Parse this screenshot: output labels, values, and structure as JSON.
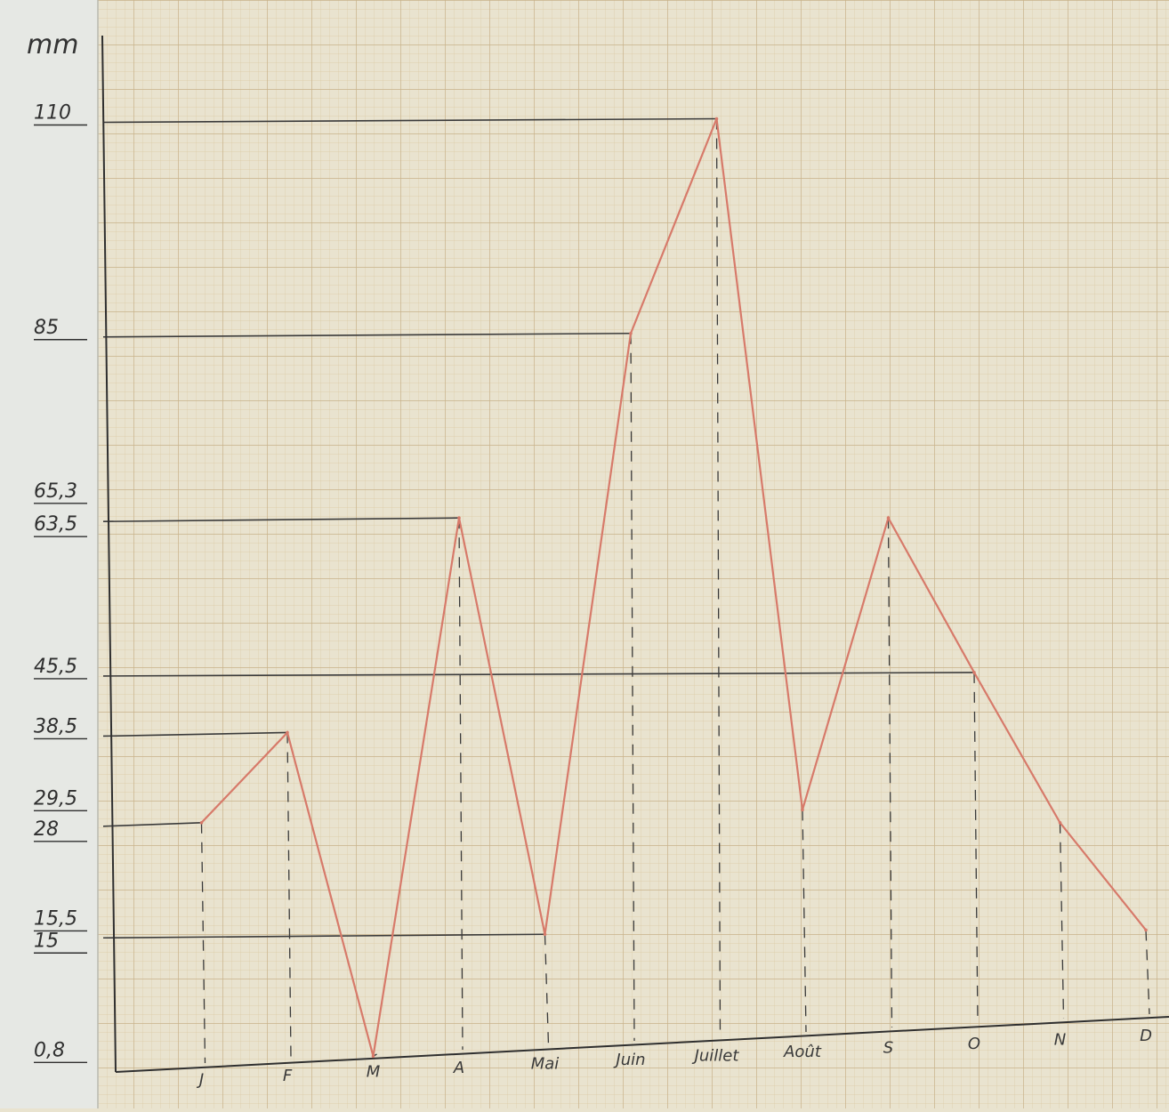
{
  "chart_data": {
    "type": "line",
    "title": "",
    "ylabel": "mm",
    "xlabel": "",
    "categories": [
      "J",
      "F",
      "M",
      "A",
      "Mai",
      "Juin",
      "Juillet",
      "Août",
      "S",
      "O",
      "N",
      "D"
    ],
    "series": [
      {
        "name": "",
        "values": [
          28,
          38.5,
          0.8,
          63.5,
          15,
          85,
          110,
          29.5,
          63.5,
          45.5,
          28,
          15.5
        ]
      }
    ],
    "yticks": [
      "110",
      "85",
      "65,3",
      "63,5",
      "45,5",
      "38,5",
      "29,5",
      "28",
      "15,5",
      "15",
      "0,8"
    ],
    "ylim": [
      0,
      120
    ],
    "grid": true,
    "legend": "none"
  },
  "colors": {
    "paper": "#e9e3cf",
    "margin_strip": "#e6e8e4",
    "grid_minor": "#d9c9a3",
    "grid_major": "#c9b58c",
    "ink": "#3a3a3a",
    "curve": "#d77a6a"
  }
}
